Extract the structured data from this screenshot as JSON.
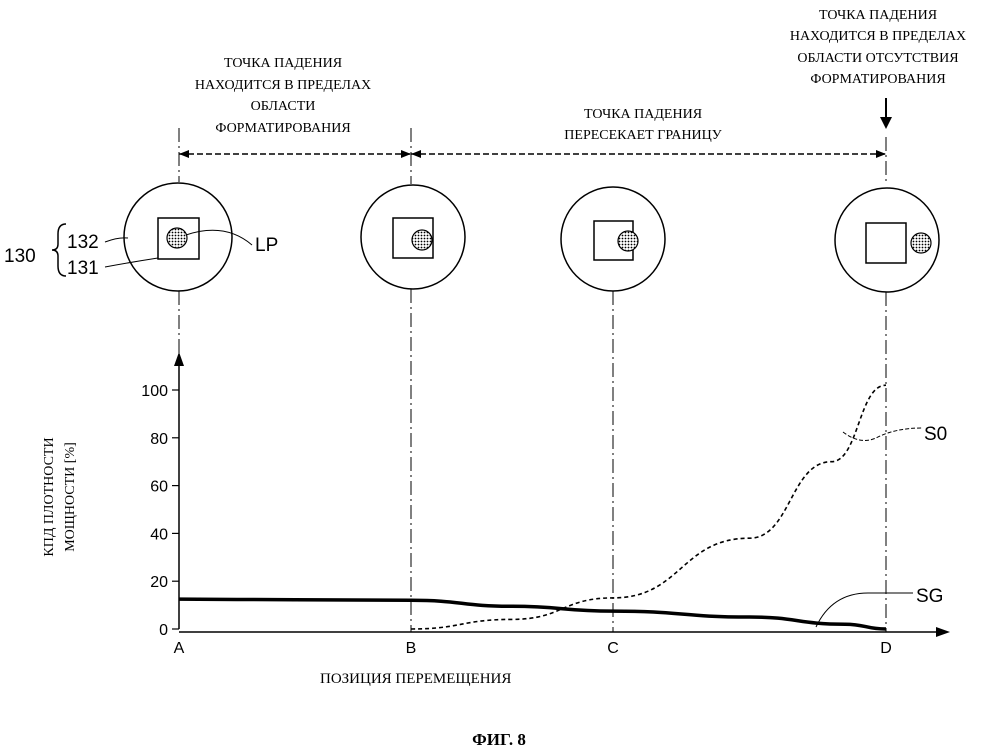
{
  "region_labels": {
    "inside_format": [
      "ТОЧКА ПАДЕНИЯ",
      "НАХОДИТСЯ В ПРЕДЕЛАХ",
      "ОБЛАСТИ",
      "ФОРМАТИРОВАНИЯ"
    ],
    "crosses_boundary": [
      "ТОЧКА ПАДЕНИЯ",
      "ПЕРЕСЕКАЕТ ГРАНИЦУ"
    ],
    "outside_format": [
      "ТОЧКА ПАДЕНИЯ",
      "НАХОДИТСЯ В ПРЕДЕЛАХ",
      "ОБЛАСТИ ОТСУТСТВИЯ",
      "ФОРМАТИРОВАНИЯ"
    ]
  },
  "reference_labels": {
    "device": "130",
    "outer": "132",
    "inner": "131",
    "spot": "LP"
  },
  "chart_data": {
    "type": "line",
    "x": [
      "A",
      "B",
      "C",
      "D"
    ],
    "ylabel": [
      "КПД ПЛОТНОСТИ",
      "МОЩНОСТИ [%]"
    ],
    "xlabel": "ПОЗИЦИЯ ПЕРЕМЕЩЕНИЯ",
    "y_ticks": [
      "0",
      "20",
      "40",
      "60",
      "80",
      "100"
    ],
    "ylim": [
      0,
      100
    ],
    "series": [
      {
        "name": "SG",
        "style": "solid-thick",
        "points": [
          [
            0,
            12.5
          ],
          [
            0.5,
            12.2
          ],
          [
            1.0,
            12.0
          ],
          [
            1.5,
            9.5
          ],
          [
            2.0,
            7.5
          ],
          [
            2.5,
            5.0
          ],
          [
            2.85,
            2.0
          ],
          [
            3.0,
            0.0
          ]
        ]
      },
      {
        "name": "S0",
        "style": "dashed",
        "points": [
          [
            1.0,
            0.0
          ],
          [
            1.5,
            4.0
          ],
          [
            2.0,
            13.0
          ],
          [
            2.5,
            38.0
          ],
          [
            2.8,
            70.0
          ],
          [
            3.0,
            102.0
          ]
        ]
      }
    ]
  },
  "figure_caption": "ФИГ. 8"
}
